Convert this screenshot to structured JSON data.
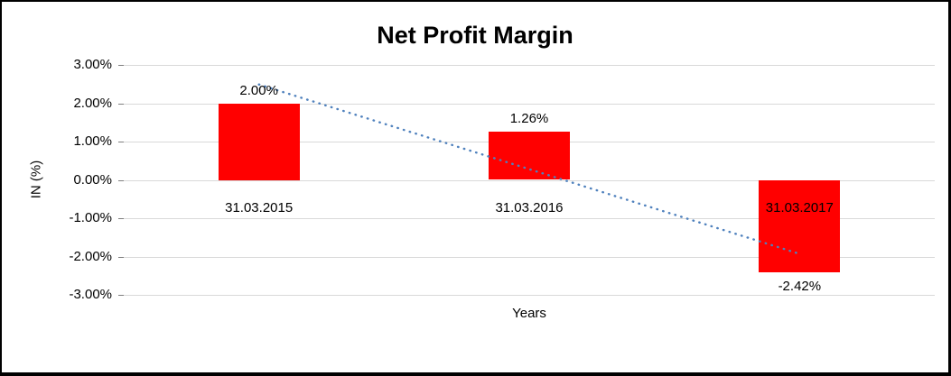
{
  "chart_data": {
    "type": "bar",
    "title": "Net Profit Margin",
    "xlabel": "Years",
    "ylabel": "IN (%)",
    "categories": [
      "31.03.2015",
      "31.03.2016",
      "31.03.2017"
    ],
    "values": [
      2.0,
      1.26,
      -2.42
    ],
    "data_labels": [
      "2.00%",
      "1.26%",
      "-2.42%"
    ],
    "bar_color": "#FF0000",
    "ylim": [
      -3,
      3
    ],
    "grid": true,
    "legend": "none",
    "yticks": [
      {
        "value": 3,
        "label": "3.00%"
      },
      {
        "value": 2,
        "label": "2.00%"
      },
      {
        "value": 1,
        "label": "1.00%"
      },
      {
        "value": 0,
        "label": "0.00%"
      },
      {
        "value": -1,
        "label": "-1.00%"
      },
      {
        "value": -2,
        "label": "-2.00%"
      },
      {
        "value": -3,
        "label": "-3.00%"
      }
    ],
    "trendline": {
      "style": "dotted",
      "color": "#4F81BD",
      "values": [
        2.49,
        -1.93
      ]
    },
    "colors": {
      "gridline": "#D9D9D9",
      "text": "#000000",
      "background": "#FFFFFF",
      "border": "#000000"
    }
  }
}
